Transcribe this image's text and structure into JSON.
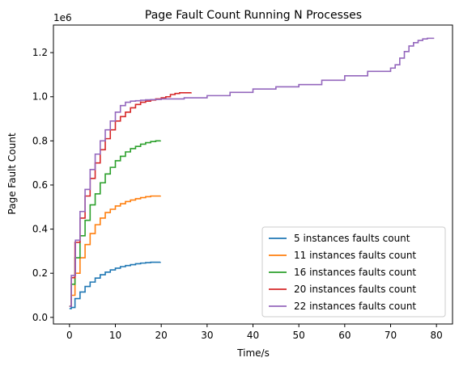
{
  "chart_data": {
    "type": "line",
    "title": "Page Fault Count Running N Processes",
    "xlabel": "Time/s",
    "ylabel": "Page Fault Count",
    "offset_label": "1e6",
    "xlim": [
      -3.5,
      83.5
    ],
    "ylim": [
      -0.03,
      1.325
    ],
    "x_ticks": [
      0,
      10,
      20,
      30,
      40,
      50,
      60,
      70,
      80
    ],
    "x_tick_labels": [
      "0",
      "10",
      "20",
      "30",
      "40",
      "50",
      "60",
      "70",
      "80"
    ],
    "y_ticks": [
      0.0,
      0.2,
      0.4,
      0.6,
      0.8,
      1.0,
      1.2
    ],
    "y_tick_labels": [
      "0.0",
      "0.2",
      "0.4",
      "0.6",
      "0.8",
      "1.0",
      "1.2"
    ],
    "grid": false,
    "legend_position": "lower-right",
    "series": [
      {
        "name": "5 instances faults count",
        "color": "#1f77b4",
        "step": true,
        "x": [
          0,
          0.4,
          1.2,
          2.3,
          3.4,
          4.5,
          5.6,
          6.7,
          7.8,
          8.9,
          10,
          11.1,
          12.2,
          13.3,
          14.4,
          15.5,
          16.6,
          17.7,
          19.8
        ],
        "y": [
          0.04,
          0.045,
          0.085,
          0.115,
          0.14,
          0.16,
          0.178,
          0.193,
          0.205,
          0.215,
          0.223,
          0.23,
          0.235,
          0.239,
          0.243,
          0.246,
          0.248,
          0.25,
          0.251
        ]
      },
      {
        "name": "11 instances faults count",
        "color": "#ff7f0e",
        "step": true,
        "x": [
          0,
          0.4,
          1.2,
          2.3,
          3.4,
          4.5,
          5.6,
          6.7,
          7.8,
          8.9,
          10,
          11.1,
          12.2,
          13.3,
          14.4,
          15.5,
          16.6,
          17.7,
          19.8
        ],
        "y": [
          0.05,
          0.1,
          0.2,
          0.27,
          0.33,
          0.38,
          0.42,
          0.45,
          0.475,
          0.49,
          0.505,
          0.515,
          0.525,
          0.532,
          0.538,
          0.543,
          0.547,
          0.55,
          0.552
        ]
      },
      {
        "name": "16 instances faults count",
        "color": "#2ca02c",
        "step": true,
        "x": [
          0,
          0.4,
          1.2,
          2.3,
          3.4,
          4.5,
          5.6,
          6.7,
          7.8,
          8.9,
          10,
          11.1,
          12.2,
          13.3,
          14.4,
          15.5,
          16.6,
          17.7,
          18.8,
          19.8
        ],
        "y": [
          0.05,
          0.15,
          0.27,
          0.37,
          0.44,
          0.51,
          0.56,
          0.61,
          0.65,
          0.68,
          0.71,
          0.73,
          0.75,
          0.765,
          0.775,
          0.785,
          0.792,
          0.797,
          0.8,
          0.802
        ]
      },
      {
        "name": "20 instances faults count",
        "color": "#d62728",
        "step": true,
        "x": [
          0,
          0.4,
          1.2,
          2.3,
          3.4,
          4.5,
          5.6,
          6.7,
          7.8,
          8.9,
          10,
          11.1,
          12.2,
          13.3,
          14.4,
          15.5,
          16.6,
          17.7,
          18.8,
          20,
          21,
          22,
          23,
          24,
          26.5
        ],
        "y": [
          0.05,
          0.18,
          0.34,
          0.45,
          0.55,
          0.63,
          0.7,
          0.76,
          0.81,
          0.85,
          0.89,
          0.91,
          0.93,
          0.95,
          0.965,
          0.975,
          0.98,
          0.985,
          0.99,
          0.995,
          1.0,
          1.01,
          1.015,
          1.018,
          1.02
        ]
      },
      {
        "name": "22 instances faults count",
        "color": "#9467bd",
        "step": true,
        "x": [
          0,
          0.4,
          1.3,
          2.3,
          3.4,
          4.5,
          5.6,
          6.7,
          7.8,
          8.9,
          10,
          11.1,
          12.2,
          13.3,
          14.4,
          15.5,
          16.6,
          17.7,
          18.8,
          20,
          25,
          30,
          35,
          40,
          45,
          50,
          55,
          60,
          65,
          70,
          71,
          72,
          73,
          74,
          75,
          76,
          77,
          78,
          79.5
        ],
        "y": [
          0.05,
          0.19,
          0.35,
          0.48,
          0.58,
          0.67,
          0.74,
          0.8,
          0.85,
          0.89,
          0.93,
          0.96,
          0.975,
          0.98,
          0.982,
          0.984,
          0.986,
          0.987,
          0.988,
          0.99,
          0.995,
          1.005,
          1.02,
          1.035,
          1.045,
          1.055,
          1.075,
          1.095,
          1.115,
          1.13,
          1.145,
          1.175,
          1.205,
          1.23,
          1.245,
          1.255,
          1.262,
          1.265,
          1.265
        ]
      }
    ]
  }
}
